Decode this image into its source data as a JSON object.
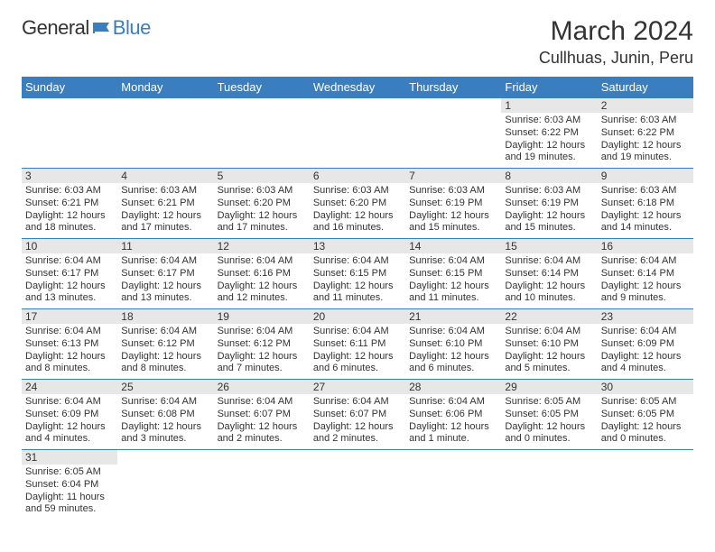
{
  "logo": {
    "general": "General",
    "blue": "Blue"
  },
  "title": "March 2024",
  "location": "Cullhuas, Junin, Peru",
  "colors": {
    "header_bg": "#3b7ec0",
    "header_fg": "#ffffff",
    "daynum_bg": "#e7e7e7",
    "rule": "#3b7ec0",
    "text": "#333333",
    "logo_blue": "#3b7ec0"
  },
  "weekdays": [
    "Sunday",
    "Monday",
    "Tuesday",
    "Wednesday",
    "Thursday",
    "Friday",
    "Saturday"
  ],
  "weeks": [
    [
      {
        "n": "",
        "sr": "",
        "ss": "",
        "dl": ""
      },
      {
        "n": "",
        "sr": "",
        "ss": "",
        "dl": ""
      },
      {
        "n": "",
        "sr": "",
        "ss": "",
        "dl": ""
      },
      {
        "n": "",
        "sr": "",
        "ss": "",
        "dl": ""
      },
      {
        "n": "",
        "sr": "",
        "ss": "",
        "dl": ""
      },
      {
        "n": "1",
        "sr": "Sunrise: 6:03 AM",
        "ss": "Sunset: 6:22 PM",
        "dl": "Daylight: 12 hours and 19 minutes."
      },
      {
        "n": "2",
        "sr": "Sunrise: 6:03 AM",
        "ss": "Sunset: 6:22 PM",
        "dl": "Daylight: 12 hours and 19 minutes."
      }
    ],
    [
      {
        "n": "3",
        "sr": "Sunrise: 6:03 AM",
        "ss": "Sunset: 6:21 PM",
        "dl": "Daylight: 12 hours and 18 minutes."
      },
      {
        "n": "4",
        "sr": "Sunrise: 6:03 AM",
        "ss": "Sunset: 6:21 PM",
        "dl": "Daylight: 12 hours and 17 minutes."
      },
      {
        "n": "5",
        "sr": "Sunrise: 6:03 AM",
        "ss": "Sunset: 6:20 PM",
        "dl": "Daylight: 12 hours and 17 minutes."
      },
      {
        "n": "6",
        "sr": "Sunrise: 6:03 AM",
        "ss": "Sunset: 6:20 PM",
        "dl": "Daylight: 12 hours and 16 minutes."
      },
      {
        "n": "7",
        "sr": "Sunrise: 6:03 AM",
        "ss": "Sunset: 6:19 PM",
        "dl": "Daylight: 12 hours and 15 minutes."
      },
      {
        "n": "8",
        "sr": "Sunrise: 6:03 AM",
        "ss": "Sunset: 6:19 PM",
        "dl": "Daylight: 12 hours and 15 minutes."
      },
      {
        "n": "9",
        "sr": "Sunrise: 6:03 AM",
        "ss": "Sunset: 6:18 PM",
        "dl": "Daylight: 12 hours and 14 minutes."
      }
    ],
    [
      {
        "n": "10",
        "sr": "Sunrise: 6:04 AM",
        "ss": "Sunset: 6:17 PM",
        "dl": "Daylight: 12 hours and 13 minutes."
      },
      {
        "n": "11",
        "sr": "Sunrise: 6:04 AM",
        "ss": "Sunset: 6:17 PM",
        "dl": "Daylight: 12 hours and 13 minutes."
      },
      {
        "n": "12",
        "sr": "Sunrise: 6:04 AM",
        "ss": "Sunset: 6:16 PM",
        "dl": "Daylight: 12 hours and 12 minutes."
      },
      {
        "n": "13",
        "sr": "Sunrise: 6:04 AM",
        "ss": "Sunset: 6:15 PM",
        "dl": "Daylight: 12 hours and 11 minutes."
      },
      {
        "n": "14",
        "sr": "Sunrise: 6:04 AM",
        "ss": "Sunset: 6:15 PM",
        "dl": "Daylight: 12 hours and 11 minutes."
      },
      {
        "n": "15",
        "sr": "Sunrise: 6:04 AM",
        "ss": "Sunset: 6:14 PM",
        "dl": "Daylight: 12 hours and 10 minutes."
      },
      {
        "n": "16",
        "sr": "Sunrise: 6:04 AM",
        "ss": "Sunset: 6:14 PM",
        "dl": "Daylight: 12 hours and 9 minutes."
      }
    ],
    [
      {
        "n": "17",
        "sr": "Sunrise: 6:04 AM",
        "ss": "Sunset: 6:13 PM",
        "dl": "Daylight: 12 hours and 8 minutes."
      },
      {
        "n": "18",
        "sr": "Sunrise: 6:04 AM",
        "ss": "Sunset: 6:12 PM",
        "dl": "Daylight: 12 hours and 8 minutes."
      },
      {
        "n": "19",
        "sr": "Sunrise: 6:04 AM",
        "ss": "Sunset: 6:12 PM",
        "dl": "Daylight: 12 hours and 7 minutes."
      },
      {
        "n": "20",
        "sr": "Sunrise: 6:04 AM",
        "ss": "Sunset: 6:11 PM",
        "dl": "Daylight: 12 hours and 6 minutes."
      },
      {
        "n": "21",
        "sr": "Sunrise: 6:04 AM",
        "ss": "Sunset: 6:10 PM",
        "dl": "Daylight: 12 hours and 6 minutes."
      },
      {
        "n": "22",
        "sr": "Sunrise: 6:04 AM",
        "ss": "Sunset: 6:10 PM",
        "dl": "Daylight: 12 hours and 5 minutes."
      },
      {
        "n": "23",
        "sr": "Sunrise: 6:04 AM",
        "ss": "Sunset: 6:09 PM",
        "dl": "Daylight: 12 hours and 4 minutes."
      }
    ],
    [
      {
        "n": "24",
        "sr": "Sunrise: 6:04 AM",
        "ss": "Sunset: 6:09 PM",
        "dl": "Daylight: 12 hours and 4 minutes."
      },
      {
        "n": "25",
        "sr": "Sunrise: 6:04 AM",
        "ss": "Sunset: 6:08 PM",
        "dl": "Daylight: 12 hours and 3 minutes."
      },
      {
        "n": "26",
        "sr": "Sunrise: 6:04 AM",
        "ss": "Sunset: 6:07 PM",
        "dl": "Daylight: 12 hours and 2 minutes."
      },
      {
        "n": "27",
        "sr": "Sunrise: 6:04 AM",
        "ss": "Sunset: 6:07 PM",
        "dl": "Daylight: 12 hours and 2 minutes."
      },
      {
        "n": "28",
        "sr": "Sunrise: 6:04 AM",
        "ss": "Sunset: 6:06 PM",
        "dl": "Daylight: 12 hours and 1 minute."
      },
      {
        "n": "29",
        "sr": "Sunrise: 6:05 AM",
        "ss": "Sunset: 6:05 PM",
        "dl": "Daylight: 12 hours and 0 minutes."
      },
      {
        "n": "30",
        "sr": "Sunrise: 6:05 AM",
        "ss": "Sunset: 6:05 PM",
        "dl": "Daylight: 12 hours and 0 minutes."
      }
    ],
    [
      {
        "n": "31",
        "sr": "Sunrise: 6:05 AM",
        "ss": "Sunset: 6:04 PM",
        "dl": "Daylight: 11 hours and 59 minutes."
      },
      {
        "n": "",
        "sr": "",
        "ss": "",
        "dl": ""
      },
      {
        "n": "",
        "sr": "",
        "ss": "",
        "dl": ""
      },
      {
        "n": "",
        "sr": "",
        "ss": "",
        "dl": ""
      },
      {
        "n": "",
        "sr": "",
        "ss": "",
        "dl": ""
      },
      {
        "n": "",
        "sr": "",
        "ss": "",
        "dl": ""
      },
      {
        "n": "",
        "sr": "",
        "ss": "",
        "dl": ""
      }
    ]
  ]
}
